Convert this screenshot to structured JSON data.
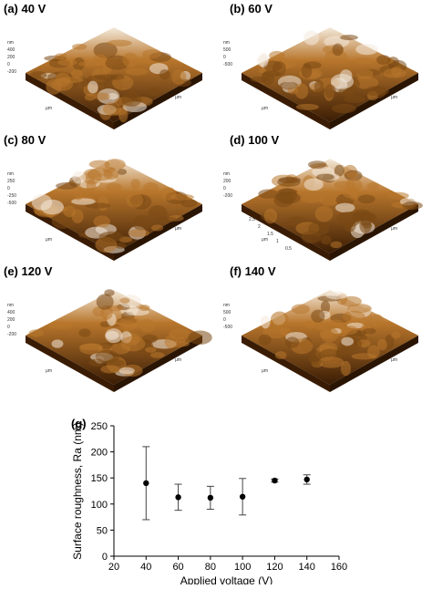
{
  "panels": [
    {
      "label": "(a) 40 V",
      "zlabels": [
        "nm",
        "400",
        "200",
        "0",
        "-200"
      ],
      "axis": "μm"
    },
    {
      "label": "(b) 60 V",
      "zlabels": [
        "nm",
        "500",
        "0",
        "-500"
      ],
      "axis": "μm"
    },
    {
      "label": "(c) 80 V",
      "zlabels": [
        "nm",
        "250",
        "0",
        "-250",
        "-500"
      ],
      "axis": "μm"
    },
    {
      "label": "(d) 100 V",
      "zlabels": [
        "nm",
        "200",
        "0",
        "-200"
      ],
      "axis": "μm",
      "ticks_y": [
        "2.5",
        "2",
        "1.5",
        "1",
        "0.5"
      ]
    },
    {
      "label": "(e) 120 V",
      "zlabels": [
        "nm",
        "400",
        "200",
        "0",
        "-200"
      ],
      "axis": "μm"
    },
    {
      "label": "(f) 140 V",
      "zlabels": [
        "nm",
        "500",
        "0",
        "-500"
      ],
      "axis": "μm"
    }
  ],
  "chart_label": "(g)",
  "chart_data": {
    "type": "scatter",
    "xlabel": "Applied voltage (V)",
    "ylabel": "Surface roughness, Ra (nm)",
    "xlim": [
      20,
      160
    ],
    "ylim": [
      0,
      250
    ],
    "xticks": [
      20,
      40,
      60,
      80,
      100,
      120,
      140,
      160
    ],
    "yticks": [
      0,
      50,
      100,
      150,
      200,
      250
    ],
    "x": [
      40,
      60,
      80,
      100,
      120,
      140
    ],
    "y": [
      140,
      113,
      112,
      114,
      145,
      147
    ],
    "err": [
      70,
      25,
      22,
      35,
      3,
      9
    ],
    "marker_color": "#000000"
  },
  "colors": {
    "afm_dark": "#3a1c04",
    "afm_mid": "#b8762c",
    "afm_light": "#f4eadc"
  }
}
